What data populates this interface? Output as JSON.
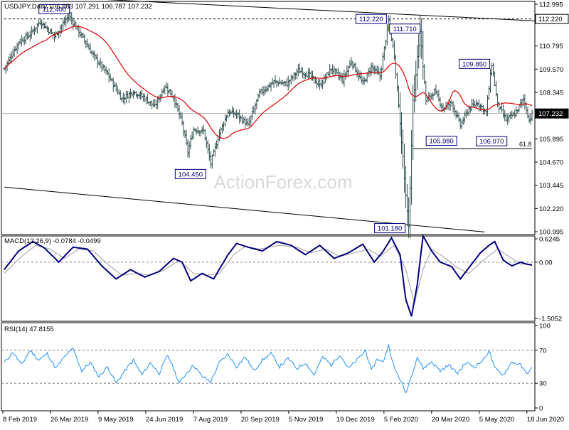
{
  "chart_data": [
    {
      "type": "ohlc",
      "pane": "price",
      "symbol": "USDJPY",
      "timeframe": "Daily",
      "ohlc_label": "USDJPY,Daily  106.883 107.291 106.787 107.232",
      "last_price": "107.232",
      "ylim": [
        100.995,
        112.995
      ],
      "y_ticks": [
        "112.995",
        "112.220",
        "110.795",
        "109.570",
        "108.345",
        "107.232",
        "105.895",
        "104.670",
        "103.445",
        "102.220",
        "100.995"
      ],
      "x": [
        "8 Feb 2019",
        "26 Mar 2019",
        "9 May 2019",
        "24 Jun 2019",
        "7 Aug 2019",
        "20 Sep 2019",
        "5 Nov 2019",
        "19 Dec 2019",
        "5 Feb 2020",
        "20 Mar 2020",
        "5 May 2020",
        "18 Jun 2020"
      ],
      "anchors": [
        {
          "t": 0,
          "v": 109.6
        },
        {
          "t": 10,
          "v": 111.0
        },
        {
          "t": 18,
          "v": 111.4
        },
        {
          "t": 25,
          "v": 112.1
        },
        {
          "t": 35,
          "v": 111.3
        },
        {
          "t": 45,
          "v": 112.4
        },
        {
          "t": 55,
          "v": 111.2
        },
        {
          "t": 62,
          "v": 110.3
        },
        {
          "t": 72,
          "v": 109.3
        },
        {
          "t": 82,
          "v": 108.0
        },
        {
          "t": 90,
          "v": 108.4
        },
        {
          "t": 97,
          "v": 108.1
        },
        {
          "t": 105,
          "v": 107.6
        },
        {
          "t": 112,
          "v": 108.7
        },
        {
          "t": 118,
          "v": 108.1
        },
        {
          "t": 124,
          "v": 106.7
        },
        {
          "t": 128,
          "v": 105.2
        },
        {
          "t": 132,
          "v": 106.4
        },
        {
          "t": 139,
          "v": 106.3
        },
        {
          "t": 144,
          "v": 104.6
        },
        {
          "t": 150,
          "v": 106.2
        },
        {
          "t": 156,
          "v": 107.3
        },
        {
          "t": 162,
          "v": 107.2
        },
        {
          "t": 170,
          "v": 106.6
        },
        {
          "t": 178,
          "v": 108.3
        },
        {
          "t": 188,
          "v": 108.9
        },
        {
          "t": 197,
          "v": 108.8
        },
        {
          "t": 205,
          "v": 109.5
        },
        {
          "t": 212,
          "v": 109.3
        },
        {
          "t": 220,
          "v": 108.7
        },
        {
          "t": 228,
          "v": 109.6
        },
        {
          "t": 236,
          "v": 109.0
        },
        {
          "t": 242,
          "v": 110.0
        },
        {
          "t": 250,
          "v": 108.8
        },
        {
          "t": 256,
          "v": 109.7
        },
        {
          "t": 262,
          "v": 109.2
        },
        {
          "t": 268,
          "v": 112.1
        },
        {
          "t": 272,
          "v": 110.3
        },
        {
          "t": 276,
          "v": 106.8
        },
        {
          "t": 280,
          "v": 102.9
        },
        {
          "t": 282,
          "v": 101.2
        },
        {
          "t": 285,
          "v": 107.8
        },
        {
          "t": 290,
          "v": 111.7
        },
        {
          "t": 294,
          "v": 107.9
        },
        {
          "t": 300,
          "v": 108.4
        },
        {
          "t": 306,
          "v": 107.5
        },
        {
          "t": 312,
          "v": 107.8
        },
        {
          "t": 318,
          "v": 106.6
        },
        {
          "t": 324,
          "v": 107.5
        },
        {
          "t": 330,
          "v": 107.8
        },
        {
          "t": 336,
          "v": 107.3
        },
        {
          "t": 340,
          "v": 109.85
        },
        {
          "t": 344,
          "v": 107.7
        },
        {
          "t": 350,
          "v": 106.9
        },
        {
          "t": 356,
          "v": 107.2
        },
        {
          "t": 362,
          "v": 108.0
        },
        {
          "t": 366,
          "v": 106.9
        },
        {
          "t": 368,
          "v": 107.2
        }
      ],
      "ma_label_hidden": "",
      "trendlines": [
        {
          "name": "upper-channel",
          "from": [
            23,
            113.42
          ],
          "to": [
            368,
            112.12
          ]
        },
        {
          "name": "lower-channel",
          "from": [
            0,
            103.35
          ],
          "to": [
            335,
            100.98
          ]
        },
        {
          "name": "horizontal-112.220",
          "from": [
            0,
            112.22
          ],
          "to": [
            368,
            112.22
          ]
        },
        {
          "name": "fib-61.8",
          "from": [
            285,
            105.38
          ],
          "to": [
            368,
            105.38
          ]
        }
      ],
      "annotations": [
        {
          "text": "112.400",
          "t": 45,
          "v": 112.4,
          "dx": -42,
          "dy": -9
        },
        {
          "text": "104.450",
          "t": 144,
          "v": 104.45,
          "dx": -50,
          "dy": 11
        },
        {
          "text": "112.220",
          "t": 268,
          "v": 112.22,
          "dx": -46,
          "dy": 0
        },
        {
          "text": "111.710",
          "t": 290,
          "v": 111.71,
          "dx": -43,
          "dy": 0
        },
        {
          "text": "101.180",
          "t": 282,
          "v": 101.18,
          "dx": -48,
          "dy": 0
        },
        {
          "text": "109.850",
          "t": 340,
          "v": 109.85,
          "dx": -46,
          "dy": 0
        },
        {
          "text": "105.980",
          "t": 318,
          "v": 105.98,
          "dx": -48,
          "dy": 5
        },
        {
          "text": "106.070",
          "t": 350,
          "v": 106.07,
          "dx": -42,
          "dy": 8
        }
      ],
      "fib_label": "61.8"
    },
    {
      "type": "line",
      "pane": "macd",
      "title": "MACD(12,26,9) -0.0784 -0.0499",
      "ylim": [
        -1.5052,
        0.6245
      ],
      "y_ticks": [
        "0.6245",
        "0.00",
        "-1.5052"
      ],
      "series": [
        {
          "role": "macd",
          "color": "#000080",
          "anchors": [
            {
              "t": 0,
              "v": -0.2
            },
            {
              "t": 10,
              "v": 0.3
            },
            {
              "t": 20,
              "v": 0.55
            },
            {
              "t": 28,
              "v": 0.38
            },
            {
              "t": 38,
              "v": 0.0
            },
            {
              "t": 48,
              "v": 0.4
            },
            {
              "t": 58,
              "v": 0.35
            },
            {
              "t": 68,
              "v": -0.1
            },
            {
              "t": 78,
              "v": -0.45
            },
            {
              "t": 88,
              "v": -0.2
            },
            {
              "t": 98,
              "v": -0.4
            },
            {
              "t": 108,
              "v": -0.25
            },
            {
              "t": 118,
              "v": 0.1
            },
            {
              "t": 124,
              "v": 0.0
            },
            {
              "t": 130,
              "v": -0.5
            },
            {
              "t": 138,
              "v": -0.3
            },
            {
              "t": 146,
              "v": -0.45
            },
            {
              "t": 156,
              "v": 0.2
            },
            {
              "t": 162,
              "v": 0.5
            },
            {
              "t": 170,
              "v": 0.4
            },
            {
              "t": 180,
              "v": 0.3
            },
            {
              "t": 190,
              "v": 0.55
            },
            {
              "t": 200,
              "v": 0.45
            },
            {
              "t": 210,
              "v": 0.2
            },
            {
              "t": 220,
              "v": 0.45
            },
            {
              "t": 230,
              "v": 0.1
            },
            {
              "t": 240,
              "v": 0.25
            },
            {
              "t": 250,
              "v": 0.48
            },
            {
              "t": 258,
              "v": 0.0
            },
            {
              "t": 264,
              "v": 0.28
            },
            {
              "t": 270,
              "v": 0.65
            },
            {
              "t": 276,
              "v": 0.2
            },
            {
              "t": 280,
              "v": -1.0
            },
            {
              "t": 284,
              "v": -1.45
            },
            {
              "t": 288,
              "v": -0.6
            },
            {
              "t": 292,
              "v": 0.7
            },
            {
              "t": 298,
              "v": 0.3
            },
            {
              "t": 304,
              "v": 0.0
            },
            {
              "t": 312,
              "v": -0.12
            },
            {
              "t": 318,
              "v": -0.45
            },
            {
              "t": 326,
              "v": -0.05
            },
            {
              "t": 332,
              "v": 0.25
            },
            {
              "t": 338,
              "v": 0.45
            },
            {
              "t": 342,
              "v": 0.55
            },
            {
              "t": 348,
              "v": 0.05
            },
            {
              "t": 354,
              "v": -0.1
            },
            {
              "t": 360,
              "v": 0.0
            },
            {
              "t": 364,
              "v": -0.05
            },
            {
              "t": 368,
              "v": -0.08
            }
          ]
        },
        {
          "role": "signal",
          "color": "#a0a0a0",
          "anchors": [
            {
              "t": 0,
              "v": -0.3
            },
            {
              "t": 12,
              "v": 0.15
            },
            {
              "t": 22,
              "v": 0.45
            },
            {
              "t": 32,
              "v": 0.35
            },
            {
              "t": 42,
              "v": 0.1
            },
            {
              "t": 52,
              "v": 0.35
            },
            {
              "t": 62,
              "v": 0.3
            },
            {
              "t": 72,
              "v": -0.05
            },
            {
              "t": 82,
              "v": -0.35
            },
            {
              "t": 92,
              "v": -0.3
            },
            {
              "t": 102,
              "v": -0.35
            },
            {
              "t": 112,
              "v": -0.2
            },
            {
              "t": 122,
              "v": 0.05
            },
            {
              "t": 132,
              "v": -0.3
            },
            {
              "t": 142,
              "v": -0.35
            },
            {
              "t": 150,
              "v": -0.3
            },
            {
              "t": 160,
              "v": 0.2
            },
            {
              "t": 168,
              "v": 0.42
            },
            {
              "t": 178,
              "v": 0.35
            },
            {
              "t": 192,
              "v": 0.45
            },
            {
              "t": 204,
              "v": 0.4
            },
            {
              "t": 214,
              "v": 0.25
            },
            {
              "t": 224,
              "v": 0.35
            },
            {
              "t": 234,
              "v": 0.15
            },
            {
              "t": 244,
              "v": 0.25
            },
            {
              "t": 254,
              "v": 0.35
            },
            {
              "t": 262,
              "v": 0.15
            },
            {
              "t": 272,
              "v": 0.45
            },
            {
              "t": 280,
              "v": -0.2
            },
            {
              "t": 286,
              "v": -1.1
            },
            {
              "t": 292,
              "v": -0.2
            },
            {
              "t": 298,
              "v": 0.35
            },
            {
              "t": 306,
              "v": 0.15
            },
            {
              "t": 316,
              "v": -0.15
            },
            {
              "t": 324,
              "v": -0.3
            },
            {
              "t": 334,
              "v": 0.05
            },
            {
              "t": 344,
              "v": 0.35
            },
            {
              "t": 352,
              "v": 0.15
            },
            {
              "t": 360,
              "v": -0.05
            },
            {
              "t": 368,
              "v": -0.05
            }
          ]
        }
      ]
    },
    {
      "type": "line",
      "pane": "rsi",
      "title": "RSI(14) 47.8155",
      "ylim": [
        0,
        100
      ],
      "y_ticks": [
        "100",
        "70",
        "30",
        "0"
      ],
      "levels": [
        70,
        30
      ],
      "series": [
        {
          "role": "rsi",
          "color": "#1e90ff",
          "anchors": [
            {
              "t": 0,
              "v": 55
            },
            {
              "t": 6,
              "v": 68
            },
            {
              "t": 12,
              "v": 52
            },
            {
              "t": 18,
              "v": 70
            },
            {
              "t": 24,
              "v": 58
            },
            {
              "t": 30,
              "v": 66
            },
            {
              "t": 36,
              "v": 48
            },
            {
              "t": 42,
              "v": 62
            },
            {
              "t": 48,
              "v": 72
            },
            {
              "t": 54,
              "v": 45
            },
            {
              "t": 60,
              "v": 55
            },
            {
              "t": 66,
              "v": 38
            },
            {
              "t": 72,
              "v": 50
            },
            {
              "t": 78,
              "v": 30
            },
            {
              "t": 84,
              "v": 45
            },
            {
              "t": 90,
              "v": 58
            },
            {
              "t": 96,
              "v": 40
            },
            {
              "t": 102,
              "v": 55
            },
            {
              "t": 108,
              "v": 42
            },
            {
              "t": 114,
              "v": 64
            },
            {
              "t": 118,
              "v": 48
            },
            {
              "t": 122,
              "v": 30
            },
            {
              "t": 126,
              "v": 40
            },
            {
              "t": 132,
              "v": 52
            },
            {
              "t": 138,
              "v": 38
            },
            {
              "t": 144,
              "v": 32
            },
            {
              "t": 150,
              "v": 55
            },
            {
              "t": 156,
              "v": 65
            },
            {
              "t": 162,
              "v": 50
            },
            {
              "t": 168,
              "v": 62
            },
            {
              "t": 174,
              "v": 45
            },
            {
              "t": 180,
              "v": 58
            },
            {
              "t": 186,
              "v": 66
            },
            {
              "t": 192,
              "v": 50
            },
            {
              "t": 198,
              "v": 60
            },
            {
              "t": 204,
              "v": 48
            },
            {
              "t": 210,
              "v": 55
            },
            {
              "t": 216,
              "v": 40
            },
            {
              "t": 222,
              "v": 62
            },
            {
              "t": 228,
              "v": 52
            },
            {
              "t": 234,
              "v": 65
            },
            {
              "t": 240,
              "v": 48
            },
            {
              "t": 246,
              "v": 58
            },
            {
              "t": 252,
              "v": 70
            },
            {
              "t": 256,
              "v": 45
            },
            {
              "t": 260,
              "v": 60
            },
            {
              "t": 264,
              "v": 55
            },
            {
              "t": 268,
              "v": 76
            },
            {
              "t": 272,
              "v": 48
            },
            {
              "t": 276,
              "v": 35
            },
            {
              "t": 280,
              "v": 18
            },
            {
              "t": 284,
              "v": 40
            },
            {
              "t": 288,
              "v": 62
            },
            {
              "t": 292,
              "v": 48
            },
            {
              "t": 298,
              "v": 56
            },
            {
              "t": 304,
              "v": 45
            },
            {
              "t": 310,
              "v": 52
            },
            {
              "t": 316,
              "v": 42
            },
            {
              "t": 322,
              "v": 55
            },
            {
              "t": 328,
              "v": 50
            },
            {
              "t": 334,
              "v": 58
            },
            {
              "t": 338,
              "v": 70
            },
            {
              "t": 342,
              "v": 48
            },
            {
              "t": 348,
              "v": 40
            },
            {
              "t": 354,
              "v": 56
            },
            {
              "t": 360,
              "v": 52
            },
            {
              "t": 364,
              "v": 42
            },
            {
              "t": 368,
              "v": 48
            }
          ]
        }
      ]
    }
  ],
  "x_labels": [
    "8 Feb 2019",
    "26 Mar 2019",
    "9 May 2019",
    "24 Jun 2019",
    "7 Aug 2019",
    "20 Sep 2019",
    "5 Nov 2019",
    "19 Dec 2019",
    "5 Feb 2020",
    "20 Mar 2020",
    "5 May 2020",
    "18 Jun 2020"
  ],
  "watermark": "ActionForex.com",
  "colors": {
    "bars": "#2f4f4f",
    "ma": "#e00000",
    "macd": "#000080",
    "signal": "#a0a0a0",
    "rsi": "#1e90ff",
    "label_border": "#000080",
    "trend": "#000000",
    "grid_dash": "#7f7f7f",
    "price_tag_bg": "#000000",
    "price_tag_fg": "#ffffff"
  }
}
